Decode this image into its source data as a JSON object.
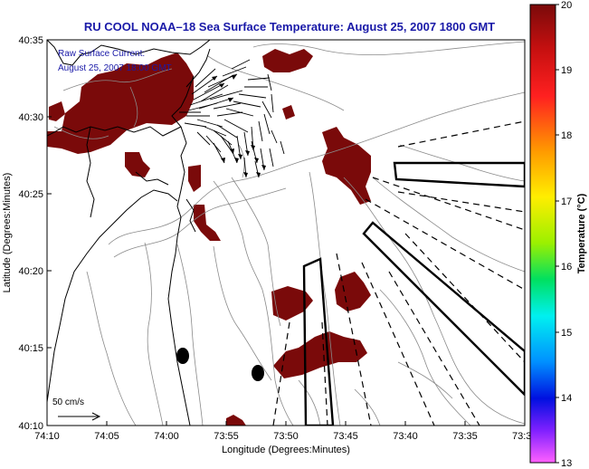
{
  "title": "RU COOL  NOAA–18  Sea Surface Temperature:  August 25, 2007 1800 GMT",
  "current_legend": {
    "line1": "Raw Surface Current:",
    "line2": "August 25, 2007 18:00 GMT"
  },
  "scale": {
    "label": "50 cm/s"
  },
  "axes": {
    "x_label": "Longitude (Degrees:Minutes)",
    "y_label": "Latitude (Degrees:Minutes)",
    "x_ticks": [
      "74:10",
      "74:05",
      "74:00",
      "73:55",
      "73:50",
      "73:45",
      "73:40",
      "73:35",
      "73:3"
    ],
    "y_ticks": [
      "40:35",
      "40:30",
      "40:25",
      "40:20",
      "40:15",
      "40:10"
    ]
  },
  "colorbar": {
    "label": "Temperature (°C)",
    "ticks": [
      "20",
      "19",
      "18",
      "17",
      "16",
      "15",
      "14",
      "13"
    ],
    "min": 13,
    "max": 20
  },
  "sst_patch_color": "#7a0a0a"
}
